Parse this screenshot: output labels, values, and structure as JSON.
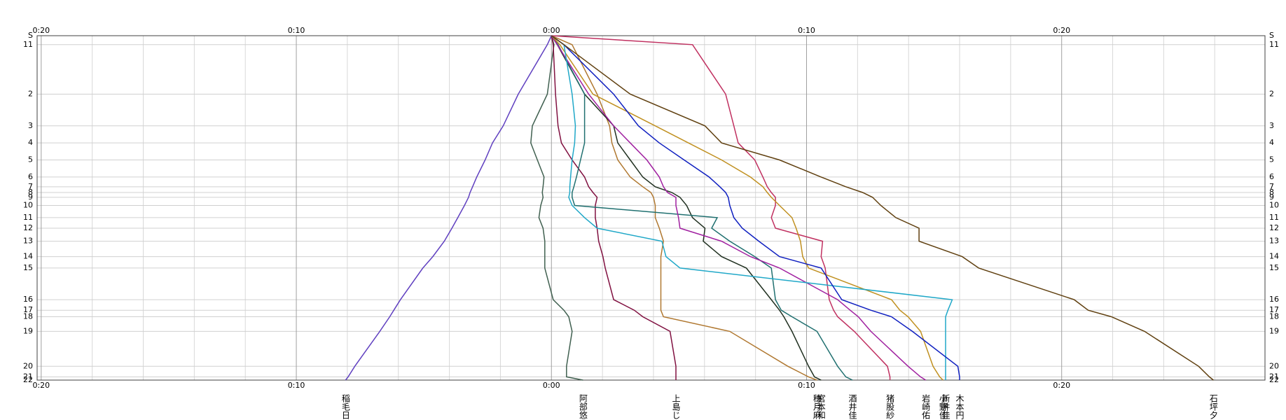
{
  "chart_data": {
    "type": "line",
    "xlim": [
      -20.16,
      27.97
    ],
    "xticks": [
      {
        "value": -20,
        "label": "0:20"
      },
      {
        "value": -10,
        "label": "0:10"
      },
      {
        "value": 0,
        "label": "0:00"
      },
      {
        "value": 10,
        "label": "0:10"
      },
      {
        "value": 20,
        "label": "0:20"
      }
    ],
    "xminorticks": [
      -18,
      -16,
      -14,
      -12,
      -8,
      -6,
      -4,
      -2,
      2,
      4,
      6,
      8,
      12,
      14,
      16,
      18,
      22,
      24,
      26
    ],
    "ylim": [
      0,
      424
    ],
    "y": [
      0,
      11,
      72,
      111,
      132,
      153,
      174,
      186,
      193,
      199,
      209,
      224,
      237,
      253,
      272,
      286,
      325,
      338,
      346,
      364,
      407,
      420,
      424
    ],
    "yticks": [
      {
        "value": 0,
        "label": "S"
      },
      11,
      {
        "value": 72,
        "label": "2"
      },
      {
        "value": 111,
        "label": "3"
      },
      {
        "value": 132,
        "label": "4"
      },
      {
        "value": 153,
        "label": "5"
      },
      {
        "value": 174,
        "label": "6"
      },
      {
        "value": 186,
        "label": "7"
      },
      {
        "value": 193,
        "label": "8"
      },
      {
        "value": 199,
        "label": "9"
      },
      {
        "value": 209,
        "label": "10"
      },
      {
        "value": 224,
        "label": "11"
      },
      {
        "value": 237,
        "label": "12"
      },
      {
        "value": 253,
        "label": "13"
      },
      {
        "value": 272,
        "label": "14"
      },
      {
        "value": 286,
        "label": "15"
      },
      {
        "value": 325,
        "label": "16"
      },
      {
        "value": 338,
        "label": "17"
      },
      {
        "value": 346,
        "label": "18"
      },
      {
        "value": 364,
        "label": "19"
      },
      {
        "value": 407,
        "label": "20"
      },
      {
        "value": 420,
        "label": "21"
      },
      {
        "value": 424,
        "label": "22"
      }
    ],
    "series": [
      {
        "name": "稲毛日",
        "color": "#6040c0",
        "values": [
          0,
          -0.16,
          -1.3,
          -1.89,
          -2.31,
          -2.6,
          -2.93,
          -3.09,
          -3.19,
          -3.25,
          -3.41,
          -3.67,
          -3.9,
          -4.2,
          -4.65,
          -5.04,
          -5.92,
          -6.18,
          -6.34,
          -6.73,
          -7.71,
          -7.97,
          -8.07
        ]
      },
      {
        "name": "阿部悠",
        "color": "#406050",
        "values": [
          0,
          0.1,
          -0.16,
          -0.75,
          -0.81,
          -0.55,
          -0.29,
          -0.33,
          -0.36,
          -0.33,
          -0.42,
          -0.49,
          -0.33,
          -0.26,
          -0.26,
          -0.26,
          0.07,
          0.49,
          0.68,
          0.81,
          0.59,
          0.59,
          1.24
        ]
      },
      {
        "name": "上島じ",
        "color": "#801040",
        "values": [
          0,
          0.07,
          0.16,
          0.26,
          0.39,
          0.81,
          1.3,
          1.46,
          1.63,
          1.79,
          1.72,
          1.72,
          1.79,
          1.85,
          2.02,
          2.11,
          2.44,
          3.25,
          3.58,
          4.65,
          4.88,
          4.88,
          4.88
        ]
      },
      {
        "name": "穂月麻",
        "color": "#b07830",
        "values": [
          0,
          0.81,
          1.79,
          2.28,
          2.37,
          2.6,
          3.09,
          3.58,
          3.9,
          4.0,
          4.07,
          4.07,
          4.23,
          4.39,
          4.29,
          4.29,
          4.29,
          4.29,
          4.39,
          6.99,
          9.27,
          10.08,
          10.41
        ]
      },
      {
        "name": "宮本和",
        "color": "#203020",
        "values": [
          0,
          0.23,
          1.3,
          2.44,
          2.6,
          3.09,
          3.58,
          4.07,
          4.72,
          5.04,
          5.3,
          5.53,
          6.02,
          5.95,
          6.67,
          7.64,
          8.62,
          8.94,
          9.11,
          9.43,
          10.08,
          10.31,
          10.57
        ]
      },
      {
        "name": "酒井佳",
        "color": "#207070",
        "values": [
          0,
          0.26,
          1.3,
          1.3,
          1.3,
          1.14,
          0.98,
          0.88,
          0.81,
          0.81,
          0.91,
          6.5,
          6.28,
          6.99,
          7.97,
          8.62,
          8.78,
          9.01,
          9.43,
          10.41,
          11.22,
          11.54,
          11.8
        ]
      },
      {
        "name": "猪股紗",
        "color": "#c03060",
        "values": [
          0,
          5.53,
          6.83,
          7.15,
          7.32,
          7.97,
          8.29,
          8.46,
          8.62,
          8.78,
          8.78,
          8.62,
          8.78,
          10.63,
          10.57,
          10.73,
          10.89,
          11.06,
          11.22,
          11.87,
          13.17,
          13.27,
          13.27
        ]
      },
      {
        "name": "岩崎佑",
        "color": "#a020a0",
        "values": [
          0,
          0.23,
          1.46,
          2.44,
          3.09,
          3.74,
          4.23,
          4.39,
          4.55,
          4.88,
          4.88,
          4.98,
          5.04,
          6.67,
          7.8,
          8.94,
          11.22,
          11.71,
          12.03,
          12.52,
          13.98,
          14.47,
          14.67
        ]
      },
      {
        "name": "小野佳",
        "color": "#c09020",
        "values": [
          0,
          0.33,
          1.63,
          4.07,
          5.37,
          6.67,
          7.8,
          8.29,
          8.46,
          8.62,
          8.94,
          9.43,
          9.59,
          9.76,
          9.85,
          10.08,
          13.33,
          13.66,
          13.98,
          14.47,
          14.96,
          15.22,
          15.35
        ]
      },
      {
        "name": "新井佳",
        "color": "#20a8c8",
        "values": [
          0,
          0.49,
          0.81,
          0.94,
          0.91,
          0.81,
          0.75,
          0.72,
          0.72,
          0.68,
          0.81,
          1.3,
          1.79,
          4.33,
          4.49,
          5.04,
          15.71,
          15.54,
          15.45,
          15.45,
          15.45,
          15.45,
          15.45
        ]
      },
      {
        "name": "木本円",
        "color": "#1020c0",
        "values": [
          0,
          0.49,
          2.44,
          3.41,
          4.23,
          5.2,
          6.18,
          6.6,
          6.83,
          6.93,
          6.99,
          7.15,
          7.48,
          8.13,
          8.94,
          10.57,
          11.38,
          12.52,
          13.33,
          14.15,
          15.93,
          16.0,
          16.0
        ]
      },
      {
        "name": "石坪夕",
        "color": "#604010",
        "values": [
          0,
          0.49,
          3.09,
          6.02,
          6.67,
          8.94,
          10.57,
          11.54,
          12.2,
          12.59,
          12.91,
          13.5,
          14.41,
          14.41,
          16.1,
          16.75,
          20.49,
          21.04,
          21.95,
          23.25,
          25.37,
          25.79,
          25.95
        ]
      }
    ]
  }
}
